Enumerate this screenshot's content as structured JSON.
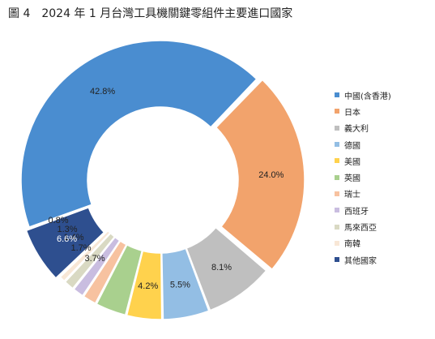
{
  "chart_data": {
    "type": "pie",
    "title": "圖 4　2024 年 1 月台灣工具機關鍵零組件主要進口國家",
    "categories": [
      "中國(含香港)",
      "日本",
      "義大利",
      "德國",
      "美國",
      "英國",
      "瑞士",
      "西班牙",
      "馬來西亞",
      "南韓",
      "其他國家"
    ],
    "values": [
      42.8,
      24.0,
      8.1,
      5.5,
      4.2,
      3.7,
      1.7,
      1.4,
      1.3,
      0.8,
      6.6
    ],
    "labels": [
      "42.8%",
      "24.0%",
      "8.1%",
      "5.5%",
      "4.2%",
      "3.7%",
      "1.7%",
      "1.4%",
      "1.3%",
      "0.8%",
      "6.6%"
    ],
    "colors": [
      "#4a8dd0",
      "#f2a36c",
      "#bfbfbf",
      "#93bee4",
      "#ffd24d",
      "#a9d08e",
      "#f7c2a0",
      "#c9bde0",
      "#d9d9c3",
      "#f8e7d6",
      "#2e4f8f"
    ],
    "legend_position": "right",
    "chart_style": "donut"
  }
}
